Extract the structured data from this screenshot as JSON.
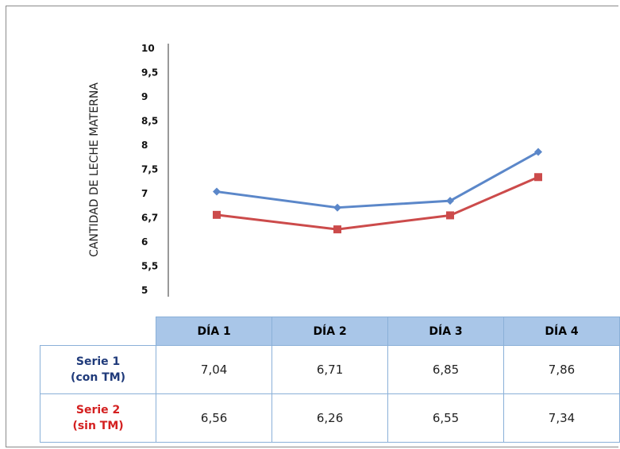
{
  "chart_data": {
    "type": "line",
    "title": "",
    "xlabel": "",
    "ylabel": "CANTIDAD DE LECHE MATERNA",
    "categories": [
      "DÍA 1",
      "DÍA 2",
      "DÍA 3",
      "DÍA 4"
    ],
    "y_tick_labels": [
      "10",
      "9,5",
      "9",
      "8,5",
      "8",
      "7,5",
      "7",
      "6,7",
      "6",
      "5,5",
      "5"
    ],
    "ylim": [
      5,
      10
    ],
    "grid": false,
    "series": [
      {
        "name_line1": "Serie 1",
        "name_line2": "(con TM)",
        "values": [
          7.04,
          6.71,
          6.85,
          7.86
        ],
        "display_values": [
          "7,04",
          "6,71",
          "6,85",
          "7,86"
        ],
        "color": "#5b87c9",
        "label_color": "#1f3a7a",
        "marker": "diamond"
      },
      {
        "name_line1": "Serie 2",
        "name_line2": "(sin TM)",
        "values": [
          6.56,
          6.26,
          6.55,
          7.34
        ],
        "display_values": [
          "6,56",
          "6,26",
          "6,55",
          "7,34"
        ],
        "color": "#cc4b4b",
        "label_color": "#d42020",
        "marker": "square"
      }
    ]
  }
}
